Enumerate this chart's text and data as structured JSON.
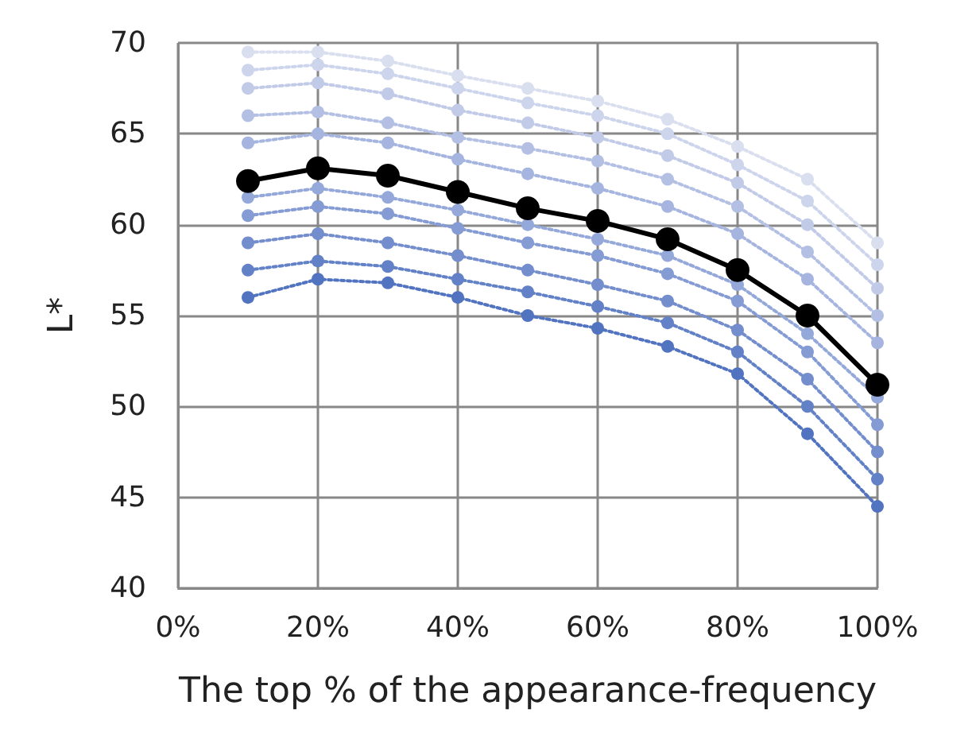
{
  "chart_data": {
    "type": "line",
    "xlabel": "The top % of the appearance-frequency",
    "ylabel": "L*",
    "x": [
      10,
      20,
      30,
      40,
      50,
      60,
      70,
      80,
      90,
      100
    ],
    "xlim": [
      0,
      100
    ],
    "xticks": [
      {
        "value": 0,
        "label": "0%"
      },
      {
        "value": 20,
        "label": "20%"
      },
      {
        "value": 40,
        "label": "40%"
      },
      {
        "value": 60,
        "label": "60%"
      },
      {
        "value": 80,
        "label": "80%"
      },
      {
        "value": 100,
        "label": "100%"
      }
    ],
    "ylim": [
      40,
      70
    ],
    "yticks": [
      40,
      45,
      50,
      55,
      60,
      65,
      70
    ],
    "grid": true,
    "marker": "circle",
    "line_style": "dotted",
    "series": [
      {
        "color": "#d9dfef",
        "values": [
          69.5,
          69.5,
          69.0,
          68.2,
          67.5,
          66.8,
          65.8,
          64.3,
          62.5,
          59.0
        ]
      },
      {
        "color": "#cdd5ec",
        "values": [
          68.5,
          68.8,
          68.3,
          67.5,
          66.7,
          66.0,
          65.0,
          63.3,
          61.3,
          57.8
        ]
      },
      {
        "color": "#c1cbe8",
        "values": [
          67.5,
          67.8,
          67.2,
          66.3,
          65.6,
          64.8,
          63.8,
          62.3,
          60.0,
          56.5
        ]
      },
      {
        "color": "#b3c0e4",
        "values": [
          66.0,
          66.2,
          65.6,
          64.8,
          64.2,
          63.5,
          62.5,
          61.0,
          58.5,
          55.0
        ]
      },
      {
        "color": "#a5b5e0",
        "values": [
          64.5,
          65.0,
          64.5,
          63.6,
          62.8,
          62.0,
          61.0,
          59.5,
          57.0,
          53.5
        ]
      },
      {
        "color": "#94a8da",
        "values": [
          61.5,
          62.0,
          61.5,
          60.8,
          60.0,
          59.2,
          58.3,
          56.7,
          54.0,
          50.5
        ]
      },
      {
        "color": "#849bd4",
        "values": [
          60.5,
          61.0,
          60.6,
          59.8,
          59.0,
          58.3,
          57.3,
          55.8,
          53.0,
          49.0
        ]
      },
      {
        "color": "#738dcd",
        "values": [
          59.0,
          59.5,
          59.0,
          58.3,
          57.5,
          56.7,
          55.8,
          54.2,
          51.5,
          47.5
        ]
      },
      {
        "color": "#6281c7",
        "values": [
          57.5,
          58.0,
          57.7,
          57.0,
          56.3,
          55.5,
          54.6,
          53.0,
          50.0,
          46.0
        ]
      },
      {
        "color": "#5274c0",
        "values": [
          56.0,
          57.0,
          56.8,
          56.0,
          55.0,
          54.3,
          53.3,
          51.8,
          48.5,
          44.5
        ]
      },
      {
        "color": "#000000",
        "line_style": "solid",
        "values": [
          62.4,
          63.1,
          62.7,
          61.8,
          60.9,
          60.2,
          59.2,
          57.5,
          55.0,
          51.2
        ]
      }
    ]
  }
}
